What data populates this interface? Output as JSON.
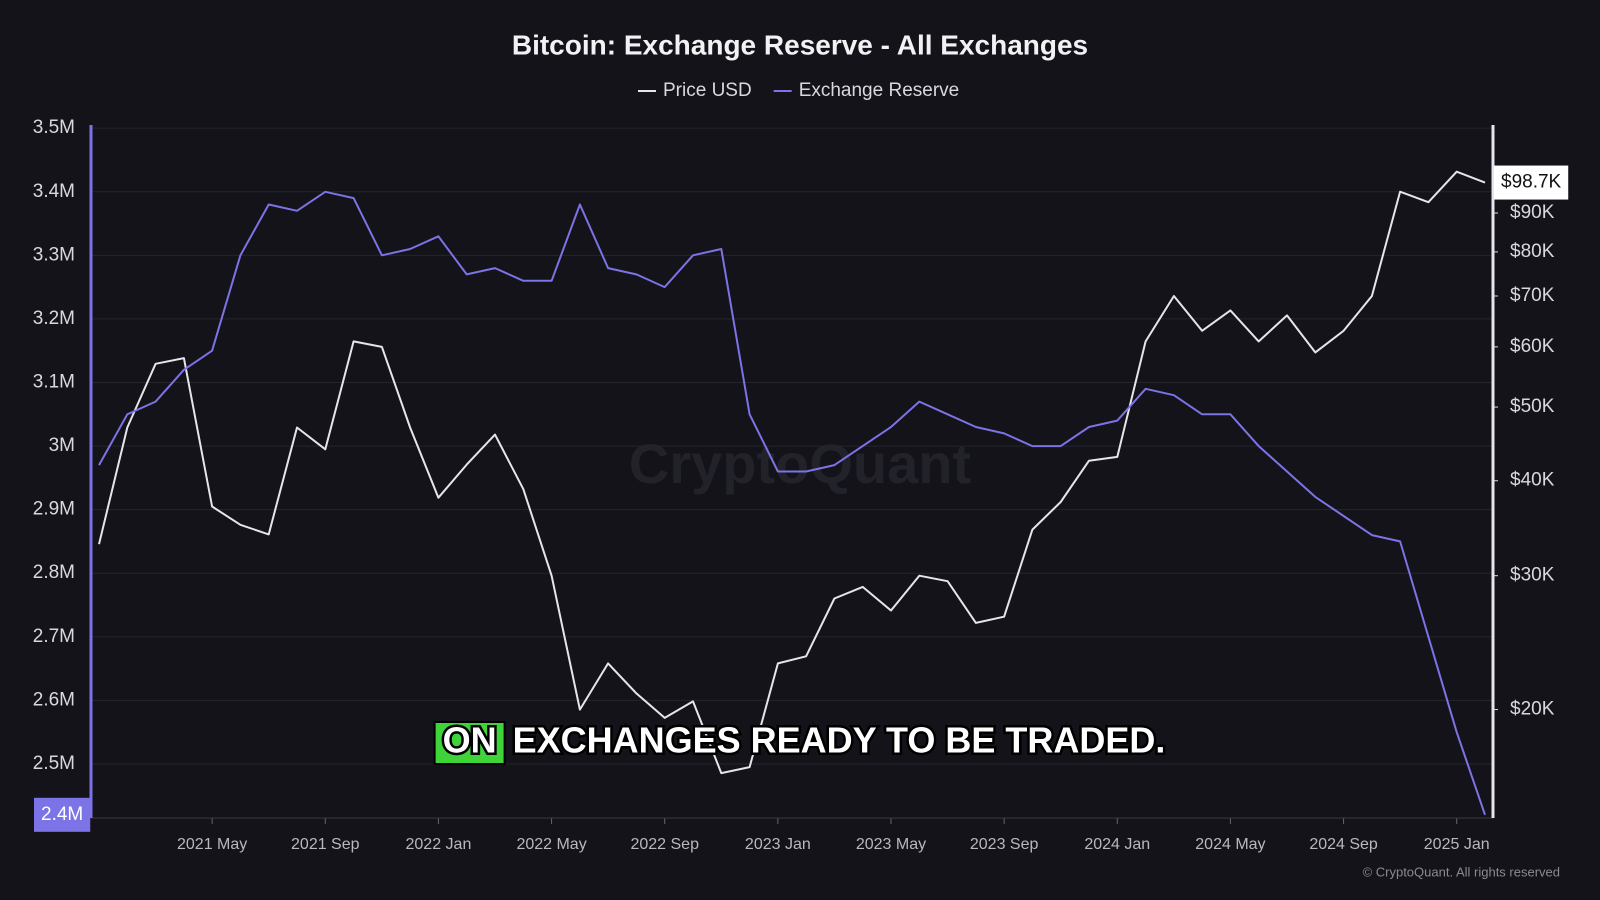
{
  "chart_data": {
    "type": "line",
    "title": "Bitcoin: Exchange Reserve - All Exchanges",
    "watermark": "CryptoQuant",
    "copyright": "© CryptoQuant. All rights reserved",
    "caption": {
      "highlight": "ON",
      "text": "EXCHANGES READY TO BE TRADED."
    },
    "x": [
      "2021-01",
      "2021-02",
      "2021-03",
      "2021-04",
      "2021-05",
      "2021-06",
      "2021-07",
      "2021-08",
      "2021-09",
      "2021-10",
      "2021-11",
      "2021-12",
      "2022-01",
      "2022-02",
      "2022-03",
      "2022-04",
      "2022-05",
      "2022-06",
      "2022-07",
      "2022-08",
      "2022-09",
      "2022-10",
      "2022-11",
      "2022-12",
      "2023-01",
      "2023-02",
      "2023-03",
      "2023-04",
      "2023-05",
      "2023-06",
      "2023-07",
      "2023-08",
      "2023-09",
      "2023-10",
      "2023-11",
      "2023-12",
      "2024-01",
      "2024-02",
      "2024-03",
      "2024-04",
      "2024-05",
      "2024-06",
      "2024-07",
      "2024-08",
      "2024-09",
      "2024-10",
      "2024-11",
      "2024-12",
      "2025-01",
      "2025-02"
    ],
    "xlim": [
      "2021-01",
      "2025-02"
    ],
    "xticks": [
      {
        "value": "2021-05",
        "label": "2021 May"
      },
      {
        "value": "2021-09",
        "label": "2021 Sep"
      },
      {
        "value": "2022-01",
        "label": "2022 Jan"
      },
      {
        "value": "2022-05",
        "label": "2022 May"
      },
      {
        "value": "2022-09",
        "label": "2022 Sep"
      },
      {
        "value": "2023-01",
        "label": "2023 Jan"
      },
      {
        "value": "2023-05",
        "label": "2023 May"
      },
      {
        "value": "2023-09",
        "label": "2023 Sep"
      },
      {
        "value": "2024-01",
        "label": "2024 Jan"
      },
      {
        "value": "2024-05",
        "label": "2024 May"
      },
      {
        "value": "2024-09",
        "label": "2024 Sep"
      },
      {
        "value": "2025-01",
        "label": "2025 Jan"
      }
    ],
    "ylim": [
      2415000,
      3505000
    ],
    "yticks": [
      {
        "value": 2500000,
        "label": "2.5M"
      },
      {
        "value": 2600000,
        "label": "2.6M"
      },
      {
        "value": 2700000,
        "label": "2.7M"
      },
      {
        "value": 2800000,
        "label": "2.8M"
      },
      {
        "value": 2900000,
        "label": "2.9M"
      },
      {
        "value": 3000000,
        "label": "3M"
      },
      {
        "value": 3100000,
        "label": "3.1M"
      },
      {
        "value": 3200000,
        "label": "3.2M"
      },
      {
        "value": 3300000,
        "label": "3.3M"
      },
      {
        "value": 3400000,
        "label": "3.4M"
      },
      {
        "value": 3500000,
        "label": "3.5M"
      }
    ],
    "y2lim": [
      14400,
      117500
    ],
    "y2_log": true,
    "y2ticks": [
      {
        "value": 20000,
        "label": "$20K"
      },
      {
        "value": 30000,
        "label": "$30K"
      },
      {
        "value": 40000,
        "label": "$40K"
      },
      {
        "value": 50000,
        "label": "$50K"
      },
      {
        "value": 60000,
        "label": "$60K"
      },
      {
        "value": 70000,
        "label": "$70K"
      },
      {
        "value": 80000,
        "label": "$80K"
      },
      {
        "value": 90000,
        "label": "$90K"
      }
    ],
    "grid": true,
    "series": [
      {
        "name": "Price USD",
        "color": "#e6e6ea",
        "axis": "y2",
        "last_label": "$98.7K",
        "values": [
          33000,
          47000,
          57000,
          58000,
          37000,
          35000,
          34000,
          47000,
          44000,
          61000,
          60000,
          47000,
          38000,
          42000,
          46000,
          39000,
          30000,
          20000,
          23000,
          21000,
          19500,
          20500,
          16500,
          16800,
          23000,
          23500,
          28000,
          29000,
          27000,
          30000,
          29500,
          26000,
          26500,
          34500,
          37500,
          42500,
          43000,
          61000,
          70000,
          63000,
          67000,
          61000,
          66000,
          59000,
          63000,
          70000,
          96000,
          93000,
          102000,
          98700
        ]
      },
      {
        "name": "Exchange Reserve",
        "color": "#7b73e6",
        "axis": "y",
        "last_label": "2.4M",
        "values": [
          2970000,
          3050000,
          3070000,
          3120000,
          3150000,
          3300000,
          3380000,
          3370000,
          3400000,
          3390000,
          3300000,
          3310000,
          3330000,
          3270000,
          3280000,
          3260000,
          3260000,
          3380000,
          3280000,
          3270000,
          3250000,
          3300000,
          3310000,
          3050000,
          2960000,
          2960000,
          2970000,
          3000000,
          3030000,
          3070000,
          3050000,
          3030000,
          3020000,
          3000000,
          3000000,
          3030000,
          3040000,
          3090000,
          3080000,
          3050000,
          3050000,
          3000000,
          2960000,
          2920000,
          2890000,
          2860000,
          2850000,
          2700000,
          2550000,
          2420000
        ]
      }
    ]
  }
}
